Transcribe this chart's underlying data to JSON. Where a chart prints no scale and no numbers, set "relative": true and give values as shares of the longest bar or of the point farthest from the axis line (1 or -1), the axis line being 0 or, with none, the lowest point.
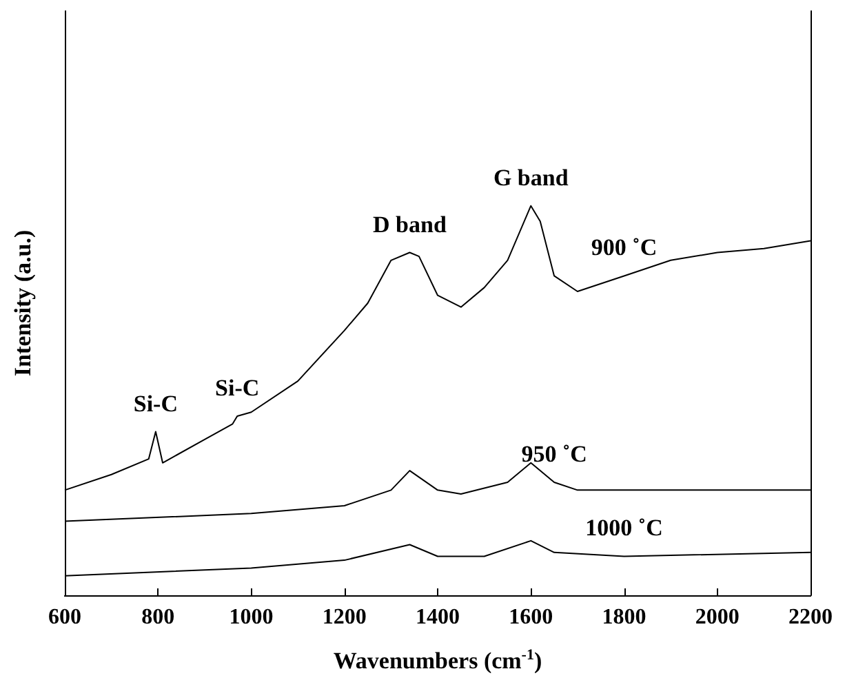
{
  "chart_data": {
    "type": "line",
    "relative": true,
    "xlabel": "Wavenumbers (cm$^{-1}$)",
    "ylabel": "Intensity (a.u.)",
    "xlim": [
      600,
      2200
    ],
    "xticks": [
      600,
      800,
      1000,
      1200,
      1400,
      1600,
      1800,
      2000,
      2200
    ],
    "grid": false,
    "legend": false,
    "marker": "none",
    "line_style": "solid",
    "series": [
      {
        "name": "900 ˚C",
        "color": "#000000",
        "x": [
          600,
          700,
          780,
          795,
          810,
          900,
          960,
          970,
          1000,
          1100,
          1200,
          1250,
          1300,
          1340,
          1360,
          1400,
          1450,
          1500,
          1550,
          1600,
          1620,
          1650,
          1700,
          1800,
          1900,
          2000,
          2100,
          2200
        ],
        "values": [
          0.27,
          0.31,
          0.35,
          0.42,
          0.34,
          0.4,
          0.44,
          0.46,
          0.47,
          0.55,
          0.68,
          0.75,
          0.86,
          0.88,
          0.87,
          0.77,
          0.74,
          0.79,
          0.86,
          1,
          0.96,
          0.82,
          0.78,
          0.82,
          0.86,
          0.88,
          0.89,
          0.91
        ]
      },
      {
        "name": "950 ˚C",
        "color": "#000000",
        "x": [
          600,
          1000,
          1200,
          1300,
          1340,
          1400,
          1450,
          1550,
          1600,
          1650,
          1700,
          2200
        ],
        "values": [
          0.19,
          0.21,
          0.23,
          0.27,
          0.32,
          0.27,
          0.26,
          0.29,
          0.34,
          0.29,
          0.27,
          0.27
        ]
      },
      {
        "name": "1000 ˚C",
        "color": "#000000",
        "x": [
          600,
          1000,
          1200,
          1340,
          1400,
          1500,
          1600,
          1650,
          1800,
          2200
        ],
        "values": [
          0.05,
          0.07,
          0.09,
          0.13,
          0.1,
          0.1,
          0.14,
          0.11,
          0.1,
          0.11
        ]
      }
    ],
    "annotations": [
      {
        "text": "Si-C",
        "x": 795,
        "y": 0.42
      },
      {
        "text": "Si-C",
        "x": 970,
        "y": 0.46
      },
      {
        "text": "D band",
        "x": 1340,
        "y": 0.88
      },
      {
        "text": "G band",
        "x": 1600,
        "y": 1
      }
    ]
  }
}
